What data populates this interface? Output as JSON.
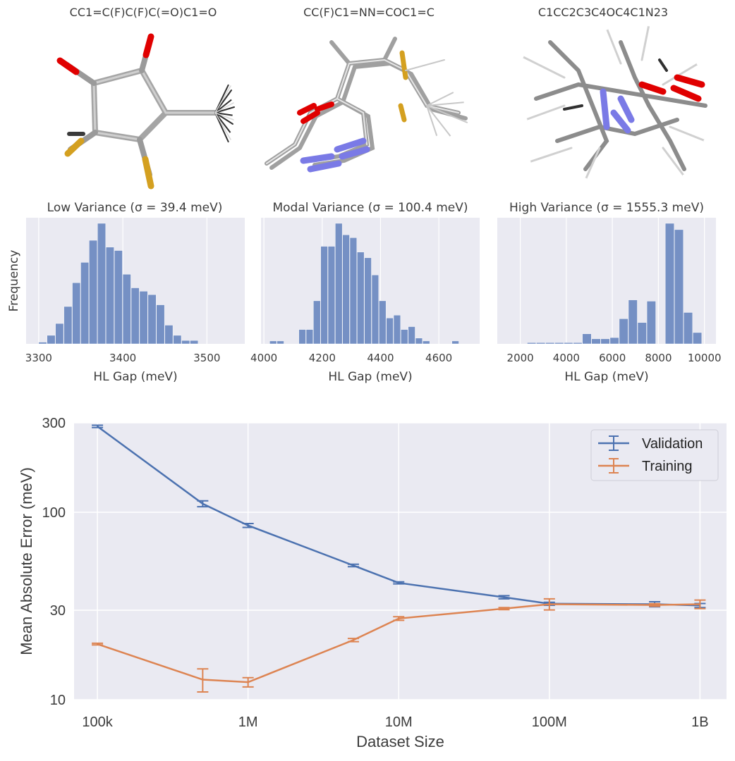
{
  "molecules": [
    {
      "smiles": "CC1=C(F)C(F)C(=O)C1=O"
    },
    {
      "smiles": "CC(F)C1=NN=COC1=C"
    },
    {
      "smiles": "C1CC2C3C4OC4C1N23"
    }
  ],
  "colors": {
    "panel_bg": "#eaeaf2",
    "grid": "#ffffff",
    "hist_bar": "#7590c4",
    "validation": "#4c72b0",
    "training": "#dd8452",
    "oxygen": "#e00000",
    "nitrogen": "#7a7ae6",
    "fluorine": "#d4a020",
    "carbon": "#9a9a9a"
  },
  "chart_data": [
    {
      "type": "bar",
      "subtype": "histogram",
      "title": "Low Variance (σ = 39.4 meV)",
      "xlabel": "HL Gap (meV)",
      "ylabel": "Frequency",
      "xlim": [
        3285,
        3545
      ],
      "xticks": [
        3300,
        3400,
        3500
      ],
      "bin_start": 3300,
      "bin_width": 10,
      "counts": [
        1,
        5,
        12,
        22,
        36,
        48,
        61,
        71,
        57,
        55,
        41,
        33,
        31,
        29,
        23,
        11,
        5,
        2,
        2,
        0
      ],
      "grid": true
    },
    {
      "type": "bar",
      "subtype": "histogram",
      "title": "Modal Variance (σ = 100.4 meV)",
      "xlabel": "HL Gap (meV)",
      "ylabel": "",
      "xlim": [
        3990,
        4740
      ],
      "xticks": [
        4000,
        4200,
        4400,
        4600
      ],
      "bin_start": 4020,
      "bin_width": 25,
      "counts": [
        1,
        1,
        0,
        0,
        5,
        5,
        15,
        34,
        34,
        42,
        38,
        37,
        32,
        30,
        24,
        15,
        9,
        10,
        5,
        6,
        2,
        1,
        0,
        0,
        0,
        1
      ],
      "grid": true
    },
    {
      "type": "bar",
      "subtype": "histogram",
      "title": "High Variance (σ = 1555.3 meV)",
      "xlabel": "HL Gap (meV)",
      "ylabel": "",
      "xlim": [
        1000,
        10500
      ],
      "xticks": [
        2000,
        4000,
        6000,
        8000,
        10000
      ],
      "bin_start": 1500,
      "bin_width": 400,
      "counts": [
        0,
        0,
        1,
        1,
        1,
        1,
        1,
        1,
        8,
        4,
        4,
        5,
        20,
        35,
        17,
        34,
        0,
        96,
        91,
        25,
        9
      ],
      "grid": true
    },
    {
      "type": "line",
      "xlabel": "Dataset Size",
      "ylabel": "Mean Absolute Error (meV)",
      "x_scale": "log",
      "y_scale": "log",
      "xlim": [
        70000,
        1500000000
      ],
      "ylim": [
        10,
        300
      ],
      "xticks": [
        100000,
        1000000,
        10000000,
        100000000,
        1000000000
      ],
      "xticklabels": [
        "100k",
        "1M",
        "10M",
        "100M",
        "1B"
      ],
      "yticks": [
        10,
        30,
        100,
        300
      ],
      "yticklabels": [
        "10",
        "30",
        "100",
        "300"
      ],
      "legend_position": "top-right",
      "grid": true,
      "x": [
        100000,
        500000,
        1000000,
        5000000,
        10000000,
        50000000,
        100000000,
        500000000,
        1000000000
      ],
      "series": [
        {
          "name": "Validation",
          "values": [
            287,
            111,
            85,
            52,
            42,
            35.2,
            32.5,
            32.3,
            31.8
          ],
          "errors": [
            4,
            4,
            2,
            0.8,
            0.5,
            0.7,
            0.6,
            1.0,
            0.8
          ]
        },
        {
          "name": "Training",
          "values": [
            19.8,
            12.8,
            12.4,
            20.8,
            27.1,
            30.6,
            32.3,
            32,
            32.3
          ],
          "errors": [
            0.2,
            1.8,
            0.7,
            0.4,
            0.6,
            0.4,
            2.2,
            0.5,
            1.7
          ]
        }
      ]
    }
  ]
}
